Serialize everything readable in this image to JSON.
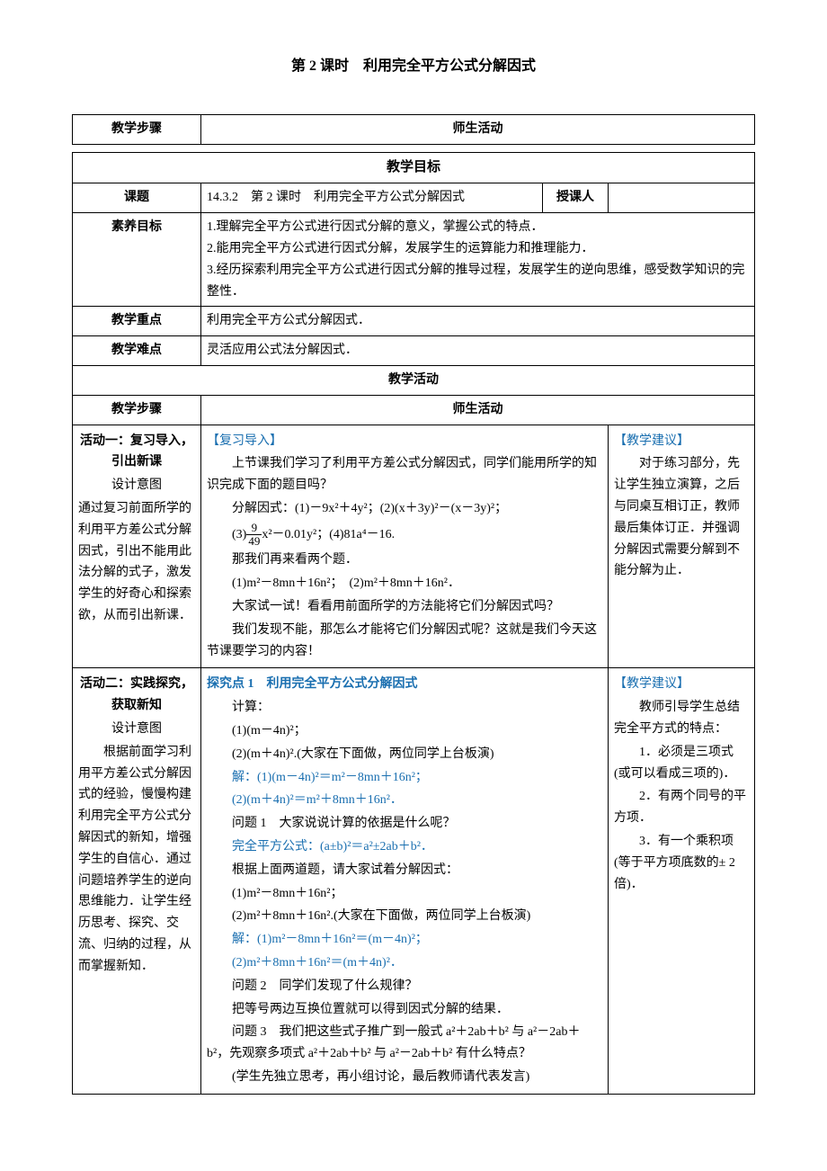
{
  "title": "第 2 课时　利用完全平方公式分解因式",
  "headerTable": {
    "col1": "教学步骤",
    "col2": "师生活动"
  },
  "goalsHeader": "教学目标",
  "rows": {
    "lessonTitle": {
      "label": "课题",
      "value": "14.3.2　第 2 课时　利用完全平方公式分解因式",
      "teacherLabel": "授课人"
    },
    "goals": {
      "label": "素养目标",
      "lines": [
        "1.理解完全平方公式进行因式分解的意义，掌握公式的特点．",
        "2.能用完全平方公式进行因式分解，发展学生的运算能力和推理能力．",
        "3.经历探索利用完全平方公式进行因式分解的推导过程，发展学生的逆向思维，感受数学知识的完整性．"
      ]
    },
    "keyPoint": {
      "label": "教学重点",
      "value": "利用完全平方公式分解因式．"
    },
    "difficulty": {
      "label": "教学难点",
      "value": "灵活应用公式法分解因式．"
    }
  },
  "activitiesHeader": "教学活动",
  "activitiesCols": {
    "c1": "教学步骤",
    "c2": "师生活动"
  },
  "act1": {
    "leftTitle": "活动一：复习导入，引出新课",
    "leftIntent": "设计意图",
    "leftBody": "通过复习前面所学的利用平方差公式分解因式，引出不能用此法分解的式子，激发学生的好奇心和探索欲，从而引出新课．",
    "midTitle": "【复习导入】",
    "midLines": [
      "　　上节课我们学习了利用平方差公式分解因式，同学们能用所学的知识完成下面的题目吗？",
      "　　分解因式：(1)－9x²＋4y²；(2)(x＋3y)²－(x－3y)²；",
      "FRAC_LINE",
      "　　那我们再来看两个题．",
      "　　(1)m²－8mn＋16n²；　(2)m²＋8mn＋16n²．",
      "　　大家试一试！看看用前面所学的方法能将它们分解因式吗？",
      "　　我们发现不能，那怎么才能将它们分解因式呢？这就是我们今天这节课要学习的内容！"
    ],
    "fracLine": {
      "pre": "　　(3)",
      "num": "9",
      "den": "49",
      "post": "x²－0.01y²；(4)81a⁴－16."
    },
    "rightTitle": "【教学建议】",
    "rightBody": "　　对于练习部分，先让学生独立演算，之后与同桌互相订正，教师最后集体订正．并强调分解因式需要分解到不能分解为止．"
  },
  "act2": {
    "leftTitle": "活动二：实践探究，获取新知",
    "leftIntent": "设计意图",
    "leftBody": "　　根据前面学习利用平方差公式分解因式的经验，慢慢构建利用完全平方公式分解因式的新知，增强学生的自信心．通过问题培养学生的逆向思维能力．让学生经历思考、探究、交流、归纳的过程，从而掌握新知．",
    "midTitle": "探究点 1　利用完全平方公式分解因式",
    "midLines": [
      "　　计算：",
      "　　(1)(m－4n)²；",
      "　　(2)(m＋4n)².(大家在下面做，两位同学上台板演)",
      "BLUE:　　解：(1)(m－4n)²＝m²－8mn＋16n²；",
      "BLUE:　　(2)(m＋4n)²＝m²＋8mn＋16n²．",
      "　　问题 1　大家说说计算的依据是什么呢？",
      "BLUE:　　完全平方公式：(a±b)²＝a²±2ab＋b²．",
      "　　根据上面两道题，请大家试着分解因式：",
      "　　(1)m²－8mn＋16n²；",
      "　　(2)m²＋8mn＋16n².(大家在下面做，两位同学上台板演)",
      "BLUE:　　解：(1)m²－8mn＋16n²＝(m－4n)²；",
      "BLUE:　　(2)m²＋8mn＋16n²＝(m＋4n)²．",
      "　　问题 2　同学们发现了什么规律？",
      "　　把等号两边互换位置就可以得到因式分解的结果．",
      "　　问题 3　我们把这些式子推广到一般式 a²＋2ab＋b² 与 a²－2ab＋b²，先观察多项式 a²＋2ab＋b² 与 a²－2ab＋b² 有什么特点？",
      "　　(学生先独立思考，再小组讨论，最后教师请代表发言)"
    ],
    "rightTitle": "【教学建议】",
    "rightLines": [
      "　　教师引导学生总结完全平方式的特点：",
      "　　1．必须是三项式(或可以看成三项的)．",
      "　　2．有两个同号的平方项．",
      "　　3．有一个乘积项(等于平方项底数的± 2 倍)．"
    ]
  }
}
